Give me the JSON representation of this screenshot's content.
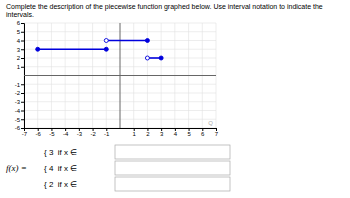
{
  "chart_data": {
    "type": "segments",
    "title": "Complete the description of the piecewise function graphed below. Use interval notation to indicate the",
    "subtitle": "intervals.",
    "xlim": [
      -7,
      7
    ],
    "ylim": [
      -6,
      6
    ],
    "xticks": [
      -7,
      -6,
      -5,
      -4,
      -3,
      -2,
      -1,
      1,
      2,
      3,
      4,
      5,
      6,
      7
    ],
    "yticks": [
      -6,
      -5,
      -4,
      -3,
      -2,
      -1,
      1,
      2,
      3,
      4,
      5,
      6
    ],
    "grid": true,
    "color": "#0000dd",
    "segments": [
      {
        "y": 3,
        "x_start": -6,
        "x_end": -1,
        "left_open": false,
        "right_open": false
      },
      {
        "y": 4,
        "x_start": -1,
        "x_end": 2,
        "left_open": true,
        "right_open": false
      },
      {
        "y": 2,
        "x_start": 2,
        "x_end": 3,
        "left_open": true,
        "right_open": false
      }
    ],
    "annotations": [
      "Q"
    ],
    "function_label": "f(x) =",
    "piecewise_labels": [
      "{ 3  if x ∈",
      "{ 4  if x ∈",
      "{ 2  if x ∈"
    ]
  }
}
